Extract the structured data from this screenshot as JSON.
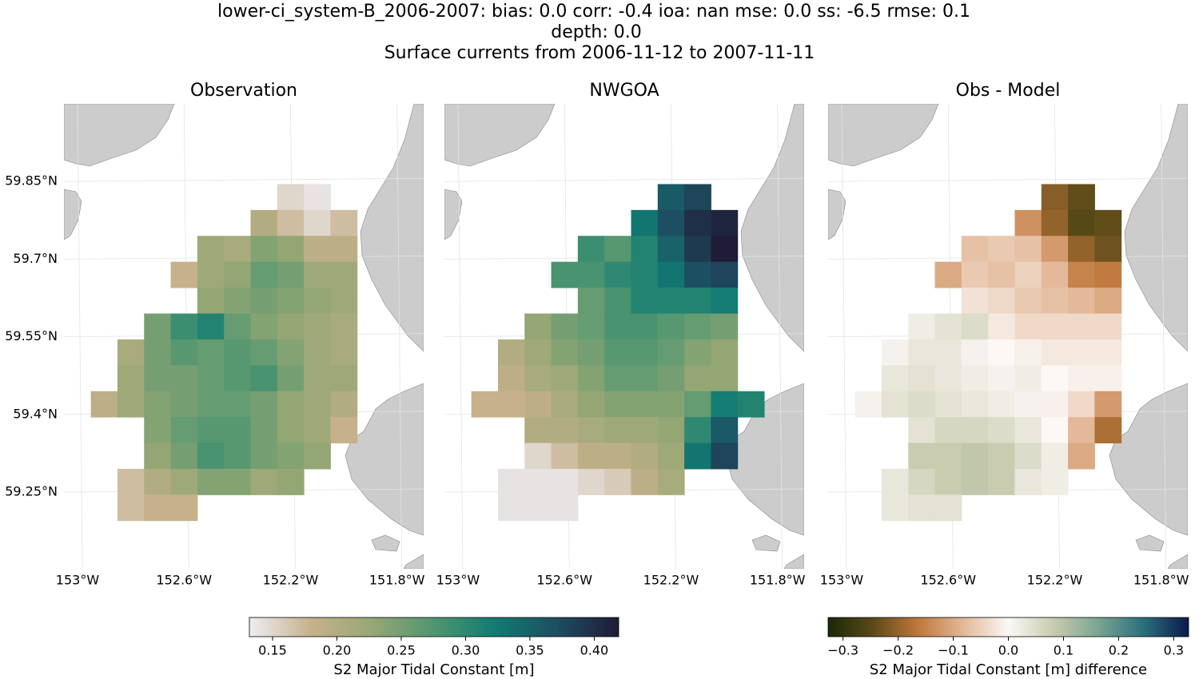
{
  "title": [
    "lower-ci_system-B_2006-2007: bias: 0.0  corr: -0.4  ioa: nan  mse: 0.0  ss: -6.5  rmse: 0.1",
    "depth: 0.0",
    "Surface currents from 2006-11-12 to 2007-11-11"
  ],
  "chart_data": [
    {
      "type": "heatmap",
      "title": "Observation",
      "x": [
        -152.9,
        -152.8,
        -152.7,
        -152.6,
        -152.5,
        -152.4,
        -152.3,
        -152.2,
        -152.1,
        -152.0,
        -151.9
      ],
      "y": [
        59.82,
        59.77,
        59.72,
        59.67,
        59.62,
        59.57,
        59.52,
        59.47,
        59.42,
        59.37,
        59.32,
        59.27,
        59.22
      ],
      "values": [
        [
          null,
          null,
          null,
          null,
          null,
          null,
          null,
          0.15,
          0.14,
          null,
          null
        ],
        [
          null,
          null,
          null,
          null,
          null,
          null,
          0.2,
          0.17,
          0.15,
          0.17,
          null
        ],
        [
          null,
          null,
          null,
          null,
          0.22,
          0.21,
          0.24,
          0.23,
          0.19,
          0.19,
          null
        ],
        [
          null,
          null,
          null,
          0.18,
          0.22,
          0.23,
          0.26,
          0.25,
          0.22,
          0.22,
          null
        ],
        [
          null,
          null,
          null,
          null,
          0.23,
          0.24,
          0.25,
          0.24,
          0.23,
          0.22,
          null
        ],
        [
          null,
          null,
          0.25,
          0.29,
          0.31,
          0.26,
          0.24,
          0.23,
          0.22,
          0.21,
          null
        ],
        [
          null,
          0.21,
          0.25,
          0.27,
          0.26,
          0.27,
          0.26,
          0.24,
          0.22,
          0.21,
          null
        ],
        [
          null,
          0.22,
          0.25,
          0.25,
          0.26,
          0.27,
          0.28,
          0.25,
          0.22,
          0.22,
          null
        ],
        [
          0.19,
          0.22,
          0.24,
          0.25,
          0.26,
          0.26,
          0.25,
          0.23,
          0.22,
          0.2,
          null
        ],
        [
          null,
          null,
          0.24,
          0.26,
          0.27,
          0.27,
          0.25,
          0.23,
          0.22,
          0.18,
          null
        ],
        [
          null,
          null,
          0.23,
          0.25,
          0.28,
          0.27,
          0.25,
          0.24,
          0.23,
          null,
          null
        ],
        [
          null,
          0.17,
          0.2,
          0.22,
          0.24,
          0.24,
          0.22,
          0.23,
          null,
          null,
          null
        ],
        [
          null,
          0.17,
          0.18,
          0.18,
          null,
          null,
          null,
          null,
          null,
          null,
          null
        ]
      ],
      "xlim": [
        -153.051,
        -151.7
      ],
      "ylim": [
        59.102,
        60.0
      ],
      "xticks": [
        {
          "value": -153,
          "label": "153°W"
        },
        {
          "value": -152.6,
          "label": "152.6°W"
        },
        {
          "value": -152.2,
          "label": "152.2°W"
        },
        {
          "value": -151.8,
          "label": "151.8°W"
        }
      ],
      "yticks": [
        {
          "value": 59.85,
          "label": "59.85°N"
        },
        {
          "value": 59.7,
          "label": "59.7°N"
        },
        {
          "value": 59.55,
          "label": "59.55°N"
        },
        {
          "value": 59.4,
          "label": "59.4°N"
        },
        {
          "value": 59.25,
          "label": "59.25°N"
        }
      ],
      "grid": true,
      "clim": [
        0.132,
        0.419
      ],
      "colormap": [
        "#eeedf3",
        "#c6b18b",
        "#97a774",
        "#4f9670",
        "#117b72",
        "#1d4e62",
        "#201b36"
      ],
      "colorbar": {
        "label": "S2 Major Tidal Constant [m]",
        "ticks": [
          0.15,
          {
            "value": 0.2,
            "label": "0.20"
          },
          0.25,
          {
            "value": 0.3,
            "label": "0.30"
          },
          0.35,
          {
            "value": 0.4,
            "label": "0.40"
          }
        ]
      }
    },
    {
      "type": "heatmap",
      "title": "NWGOA",
      "x": [
        -152.9,
        -152.8,
        -152.7,
        -152.6,
        -152.5,
        -152.4,
        -152.3,
        -152.2,
        -152.1,
        -152.0,
        -151.9
      ],
      "y": [
        59.82,
        59.77,
        59.72,
        59.67,
        59.62,
        59.57,
        59.52,
        59.47,
        59.42,
        59.37,
        59.32,
        59.27,
        59.22
      ],
      "values": [
        [
          null,
          null,
          null,
          null,
          null,
          null,
          null,
          0.36,
          0.38,
          null,
          null
        ],
        [
          null,
          null,
          null,
          null,
          null,
          null,
          0.33,
          0.37,
          0.4,
          0.41,
          null
        ],
        [
          null,
          null,
          null,
          null,
          0.29,
          0.27,
          0.31,
          0.35,
          0.39,
          0.42,
          null
        ],
        [
          null,
          null,
          null,
          0.28,
          0.28,
          0.3,
          0.31,
          0.33,
          0.37,
          0.38,
          null
        ],
        [
          null,
          null,
          null,
          null,
          0.26,
          0.28,
          0.31,
          0.31,
          0.31,
          0.32,
          null
        ],
        [
          null,
          null,
          0.23,
          0.25,
          0.26,
          0.28,
          0.28,
          0.27,
          0.26,
          0.25,
          null
        ],
        [
          null,
          0.2,
          0.22,
          0.24,
          0.25,
          0.27,
          0.27,
          0.26,
          0.24,
          0.23,
          null
        ],
        [
          null,
          0.19,
          0.21,
          0.22,
          0.24,
          0.26,
          0.26,
          0.25,
          0.23,
          0.23,
          null
        ],
        [
          0.18,
          0.18,
          0.19,
          0.21,
          0.23,
          0.24,
          0.24,
          0.24,
          0.26,
          0.32,
          0.31
        ],
        [
          null,
          null,
          0.2,
          0.2,
          0.21,
          0.22,
          0.22,
          0.23,
          0.3,
          0.36,
          null
        ],
        [
          null,
          null,
          0.15,
          0.17,
          0.19,
          0.19,
          0.2,
          0.22,
          0.33,
          0.38,
          null
        ],
        [
          null,
          0.14,
          0.14,
          0.14,
          0.15,
          0.16,
          0.19,
          0.21,
          null,
          null,
          null
        ],
        [
          null,
          0.14,
          0.14,
          0.14,
          null,
          null,
          null,
          null,
          null,
          null,
          null
        ]
      ],
      "xlim": [
        -153.051,
        -151.7
      ],
      "ylim": [
        59.102,
        60.0
      ],
      "xticks": [
        {
          "value": -153,
          "label": "153°W"
        },
        {
          "value": -152.6,
          "label": "152.6°W"
        },
        {
          "value": -152.2,
          "label": "152.2°W"
        },
        {
          "value": -151.8,
          "label": "151.8°W"
        }
      ],
      "yticks": [
        {
          "value": 59.85,
          "label": "59.85°N"
        },
        {
          "value": 59.7,
          "label": "59.7°N"
        },
        {
          "value": 59.55,
          "label": "59.55°N"
        },
        {
          "value": 59.4,
          "label": "59.4°N"
        },
        {
          "value": 59.25,
          "label": "59.25°N"
        }
      ],
      "grid": true,
      "clim": [
        0.132,
        0.419
      ],
      "colormap": [
        "#eeedf3",
        "#c6b18b",
        "#97a774",
        "#4f9670",
        "#117b72",
        "#1d4e62",
        "#201b36"
      ]
    },
    {
      "type": "heatmap",
      "title": "Obs - Model",
      "x": [
        -152.9,
        -152.8,
        -152.7,
        -152.6,
        -152.5,
        -152.4,
        -152.3,
        -152.2,
        -152.1,
        -152.0,
        -151.9
      ],
      "y": [
        59.82,
        59.77,
        59.72,
        59.67,
        59.62,
        59.57,
        59.52,
        59.47,
        59.42,
        59.37,
        59.32,
        59.27,
        59.22
      ],
      "values": [
        [
          null,
          null,
          null,
          null,
          null,
          null,
          null,
          -0.21,
          -0.24,
          null,
          null
        ],
        [
          null,
          null,
          null,
          null,
          null,
          null,
          -0.13,
          -0.2,
          -0.25,
          -0.24,
          null
        ],
        [
          null,
          null,
          null,
          null,
          -0.07,
          -0.06,
          -0.07,
          -0.12,
          -0.2,
          -0.23,
          null
        ],
        [
          null,
          null,
          null,
          -0.1,
          -0.06,
          -0.07,
          -0.05,
          -0.08,
          -0.15,
          -0.16,
          null
        ],
        [
          null,
          null,
          null,
          null,
          -0.03,
          -0.04,
          -0.06,
          -0.07,
          -0.08,
          -0.1,
          null
        ],
        [
          null,
          null,
          0.02,
          0.04,
          0.05,
          -0.02,
          -0.04,
          -0.04,
          -0.04,
          -0.04,
          null
        ],
        [
          null,
          0.01,
          0.03,
          0.03,
          0.01,
          0,
          -0.01,
          -0.02,
          -0.02,
          -0.02,
          null
        ],
        [
          null,
          0.03,
          0.04,
          0.03,
          0.02,
          0.01,
          0.02,
          0,
          -0.01,
          -0.01,
          null
        ],
        [
          0.01,
          0.04,
          0.05,
          0.04,
          0.03,
          0.02,
          0.01,
          -0.01,
          -0.04,
          -0.12,
          null
        ],
        [
          null,
          null,
          0.04,
          0.06,
          0.06,
          0.05,
          0.03,
          0,
          -0.08,
          -0.18,
          null
        ],
        [
          null,
          null,
          0.08,
          0.08,
          0.09,
          0.08,
          0.05,
          0.02,
          -0.1,
          null,
          null
        ],
        [
          null,
          0.03,
          0.06,
          0.08,
          0.09,
          0.08,
          0.03,
          0.02,
          null,
          null,
          null
        ],
        [
          null,
          0.03,
          0.04,
          0.04,
          null,
          null,
          null,
          null,
          null,
          null,
          null
        ]
      ],
      "xlim": [
        -153.051,
        -151.7
      ],
      "ylim": [
        59.102,
        60.0
      ],
      "xticks": [
        {
          "value": -153,
          "label": "153°W"
        },
        {
          "value": -152.6,
          "label": "152.6°W"
        },
        {
          "value": -152.2,
          "label": "152.2°W"
        },
        {
          "value": -151.8,
          "label": "151.8°W"
        }
      ],
      "yticks": [
        {
          "value": 59.85,
          "label": "59.85°N"
        },
        {
          "value": 59.7,
          "label": "59.7°N"
        },
        {
          "value": 59.55,
          "label": "59.55°N"
        },
        {
          "value": 59.4,
          "label": "59.4°N"
        },
        {
          "value": 59.25,
          "label": "59.25°N"
        }
      ],
      "grid": true,
      "clim": [
        -0.327,
        0.327
      ],
      "colormap": [
        "#1b2808",
        "#5b4a18",
        "#c0783c",
        "#e2b898",
        "#fbf8f6",
        "#c9cbae",
        "#79a592",
        "#2b6f7c",
        "#0b1a4c"
      ],
      "colorbar": {
        "label": "S2 Major Tidal Constant [m] difference",
        "ticks": [
          {
            "value": -0.3,
            "label": "−0.3"
          },
          {
            "value": -0.2,
            "label": "−0.2"
          },
          {
            "value": -0.1,
            "label": "−0.1"
          },
          {
            "value": 0,
            "label": "0.0"
          },
          0.1,
          0.2,
          0.3
        ]
      }
    }
  ]
}
